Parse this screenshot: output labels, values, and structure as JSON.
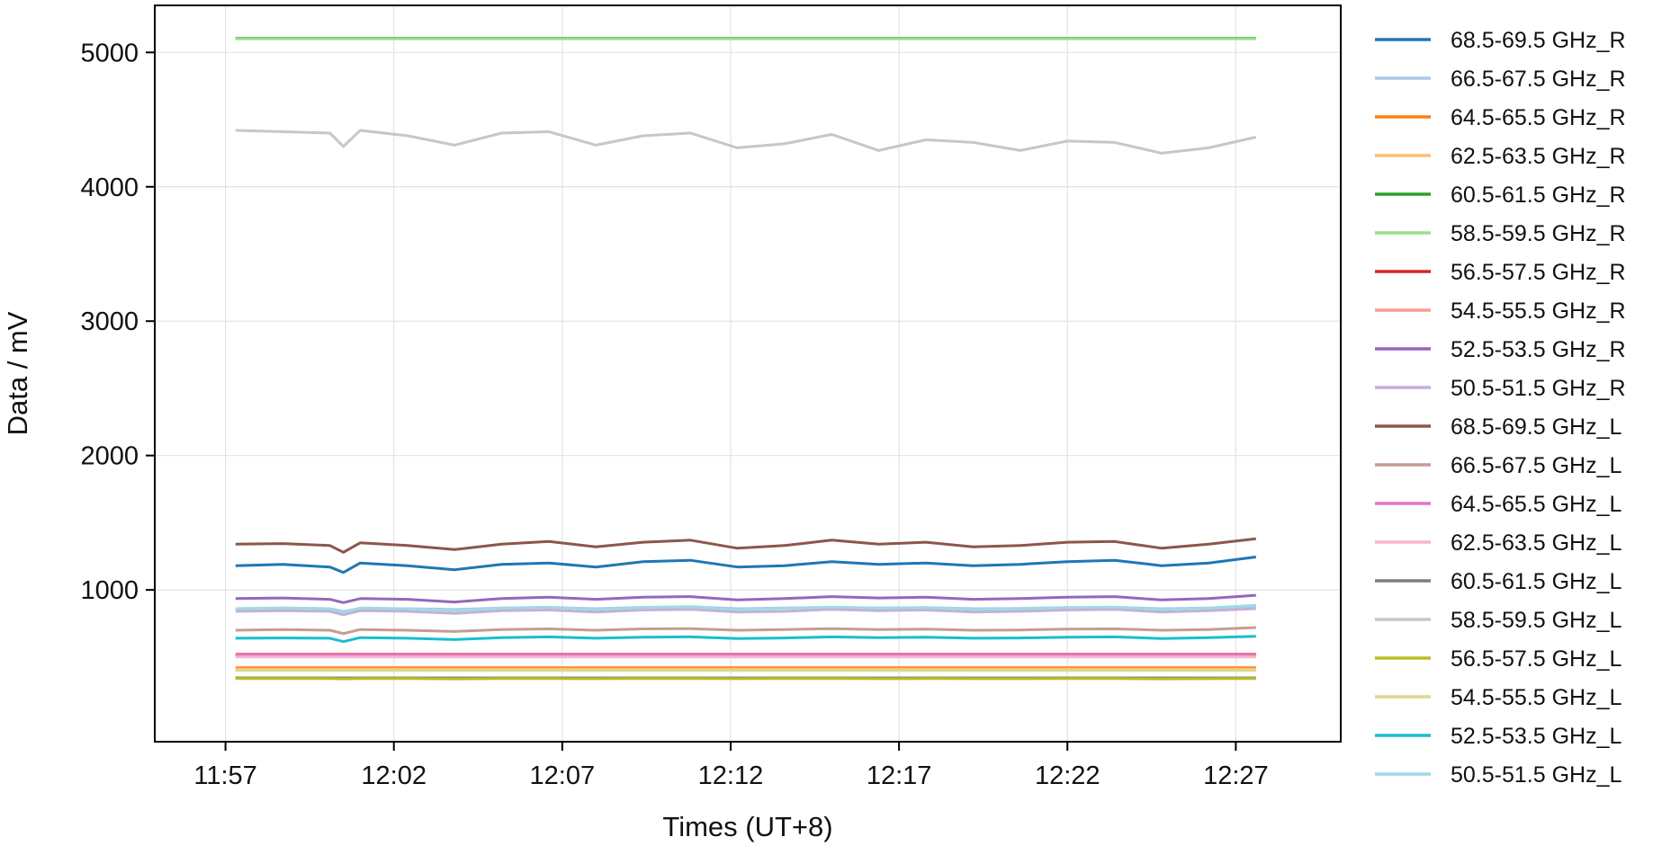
{
  "chart_data": {
    "type": "line",
    "title": "",
    "xlabel": "Times (UT+8)",
    "ylabel": "Data / mV",
    "xlim": [
      "11:54:54",
      "12:30:07"
    ],
    "ylim": [
      -130,
      5350
    ],
    "x_ticks": [
      "11:57",
      "12:02",
      "12:07",
      "12:12",
      "12:17",
      "12:22",
      "12:27"
    ],
    "y_ticks": [
      1000,
      2000,
      3000,
      4000,
      5000
    ],
    "grid": true,
    "legend_position": "outside-right",
    "x": [
      "11:57:18",
      "11:58:42",
      "12:00:06",
      "12:00:30",
      "12:01:00",
      "12:02:24",
      "12:03:48",
      "12:05:12",
      "12:06:36",
      "12:08:00",
      "12:09:24",
      "12:10:48",
      "12:12:12",
      "12:13:36",
      "12:15:00",
      "12:16:24",
      "12:17:48",
      "12:19:12",
      "12:20:36",
      "12:22:00",
      "12:23:24",
      "12:24:48",
      "12:26:12",
      "12:27:36"
    ],
    "series": [
      {
        "name": "68.5-69.5 GHz_R",
        "color": "#1f77b4",
        "values": [
          1180,
          1190,
          1170,
          1130,
          1200,
          1180,
          1150,
          1190,
          1200,
          1170,
          1210,
          1220,
          1170,
          1180,
          1210,
          1190,
          1200,
          1180,
          1190,
          1210,
          1220,
          1180,
          1200,
          1245
        ]
      },
      {
        "name": "66.5-67.5 GHz_R",
        "color": "#aec7e8",
        "values": [
          860,
          865,
          860,
          840,
          860,
          860,
          855,
          865,
          870,
          860,
          870,
          875,
          860,
          865,
          870,
          865,
          868,
          860,
          862,
          868,
          870,
          860,
          865,
          880
        ]
      },
      {
        "name": "64.5-65.5 GHz_R",
        "color": "#ff7f0e",
        "values": [
          420,
          420,
          420,
          420,
          420,
          420,
          420,
          420,
          420,
          420,
          420,
          420,
          420,
          420,
          420,
          420,
          420,
          420,
          420,
          420,
          420,
          420,
          420,
          420
        ]
      },
      {
        "name": "62.5-63.5 GHz_R",
        "color": "#ffbb78",
        "values": [
          410,
          410,
          410,
          410,
          410,
          410,
          410,
          410,
          410,
          410,
          410,
          410,
          410,
          410,
          410,
          410,
          410,
          410,
          410,
          410,
          410,
          410,
          410,
          410
        ]
      },
      {
        "name": "60.5-61.5 GHz_R",
        "color": "#2ca02c",
        "values": [
          5105,
          5105,
          5105,
          5105,
          5105,
          5105,
          5105,
          5105,
          5105,
          5105,
          5105,
          5105,
          5105,
          5105,
          5105,
          5105,
          5105,
          5105,
          5105,
          5105,
          5105,
          5105,
          5105,
          5105
        ]
      },
      {
        "name": "58.5-59.5 GHz_R",
        "color": "#98df8a",
        "values": [
          5102,
          5102,
          5102,
          5102,
          5102,
          5102,
          5102,
          5102,
          5102,
          5102,
          5102,
          5102,
          5102,
          5102,
          5102,
          5102,
          5102,
          5102,
          5102,
          5102,
          5102,
          5102,
          5102,
          5102
        ]
      },
      {
        "name": "56.5-57.5 GHz_R",
        "color": "#d62728",
        "values": [
          520,
          520,
          520,
          520,
          520,
          520,
          520,
          520,
          520,
          520,
          520,
          520,
          520,
          520,
          520,
          520,
          520,
          520,
          520,
          520,
          520,
          520,
          520,
          520
        ]
      },
      {
        "name": "54.5-55.5 GHz_R",
        "color": "#ff9896",
        "values": [
          515,
          515,
          515,
          515,
          515,
          515,
          515,
          515,
          515,
          515,
          515,
          515,
          515,
          515,
          515,
          515,
          515,
          515,
          515,
          515,
          515,
          515,
          515,
          515
        ]
      },
      {
        "name": "52.5-53.5 GHz_R",
        "color": "#9467bd",
        "values": [
          935,
          940,
          930,
          905,
          935,
          930,
          910,
          935,
          945,
          930,
          945,
          950,
          925,
          935,
          950,
          940,
          945,
          930,
          935,
          945,
          950,
          925,
          935,
          960
        ]
      },
      {
        "name": "50.5-51.5 GHz_R",
        "color": "#c5b0d5",
        "values": [
          840,
          845,
          840,
          815,
          845,
          840,
          825,
          845,
          850,
          835,
          850,
          855,
          835,
          840,
          855,
          845,
          850,
          835,
          840,
          850,
          855,
          835,
          845,
          860
        ]
      },
      {
        "name": "68.5-69.5 GHz_L",
        "color": "#8c564b",
        "values": [
          1340,
          1345,
          1330,
          1280,
          1350,
          1330,
          1300,
          1340,
          1360,
          1320,
          1355,
          1370,
          1310,
          1330,
          1370,
          1340,
          1355,
          1320,
          1330,
          1355,
          1360,
          1310,
          1340,
          1380
        ]
      },
      {
        "name": "66.5-67.5 GHz_L",
        "color": "#c49c94",
        "values": [
          700,
          705,
          700,
          675,
          705,
          700,
          690,
          705,
          710,
          700,
          710,
          712,
          700,
          705,
          712,
          705,
          708,
          700,
          702,
          708,
          710,
          700,
          705,
          720
        ]
      },
      {
        "name": "64.5-65.5 GHz_L",
        "color": "#e377c2",
        "values": [
          515,
          515,
          515,
          515,
          515,
          515,
          515,
          515,
          515,
          515,
          515,
          515,
          515,
          515,
          515,
          515,
          515,
          515,
          515,
          515,
          515,
          515,
          515,
          515
        ]
      },
      {
        "name": "62.5-63.5 GHz_L",
        "color": "#f7b6d2",
        "values": [
          500,
          500,
          500,
          500,
          500,
          500,
          500,
          500,
          500,
          500,
          500,
          500,
          500,
          500,
          500,
          500,
          500,
          500,
          500,
          500,
          500,
          500,
          500,
          500
        ]
      },
      {
        "name": "60.5-61.5 GHz_L",
        "color": "#7f7f7f",
        "values": [
          345,
          345,
          345,
          345,
          345,
          345,
          345,
          345,
          345,
          345,
          345,
          345,
          345,
          345,
          345,
          345,
          345,
          345,
          345,
          345,
          345,
          345,
          345,
          345
        ]
      },
      {
        "name": "58.5-59.5 GHz_L",
        "color": "#c7c7c7",
        "values": [
          4420,
          4410,
          4400,
          4300,
          4420,
          4380,
          4310,
          4400,
          4410,
          4310,
          4380,
          4400,
          4290,
          4320,
          4390,
          4270,
          4350,
          4330,
          4270,
          4340,
          4330,
          4250,
          4290,
          4370
        ]
      },
      {
        "name": "56.5-57.5 GHz_L",
        "color": "#bcbd22",
        "values": [
          340,
          340,
          340,
          338,
          340,
          340,
          338,
          340,
          340,
          339,
          340,
          340,
          339,
          340,
          340,
          339,
          340,
          339,
          339,
          340,
          340,
          338,
          339,
          340
        ]
      },
      {
        "name": "54.5-55.5 GHz_L",
        "color": "#dbdb8d",
        "values": [
          400,
          400,
          400,
          400,
          400,
          400,
          400,
          400,
          400,
          400,
          400,
          400,
          400,
          400,
          400,
          400,
          400,
          400,
          400,
          400,
          400,
          400,
          400,
          400
        ]
      },
      {
        "name": "52.5-53.5 GHz_L",
        "color": "#17becf",
        "values": [
          640,
          642,
          640,
          615,
          645,
          640,
          630,
          645,
          650,
          640,
          648,
          650,
          638,
          642,
          650,
          645,
          648,
          640,
          642,
          648,
          650,
          638,
          645,
          655
        ]
      },
      {
        "name": "50.5-51.5 GHz_L",
        "color": "#9edae5",
        "values": [
          860,
          865,
          860,
          835,
          865,
          860,
          845,
          865,
          870,
          855,
          868,
          872,
          855,
          862,
          872,
          865,
          868,
          855,
          860,
          868,
          872,
          855,
          865,
          885
        ]
      }
    ]
  }
}
